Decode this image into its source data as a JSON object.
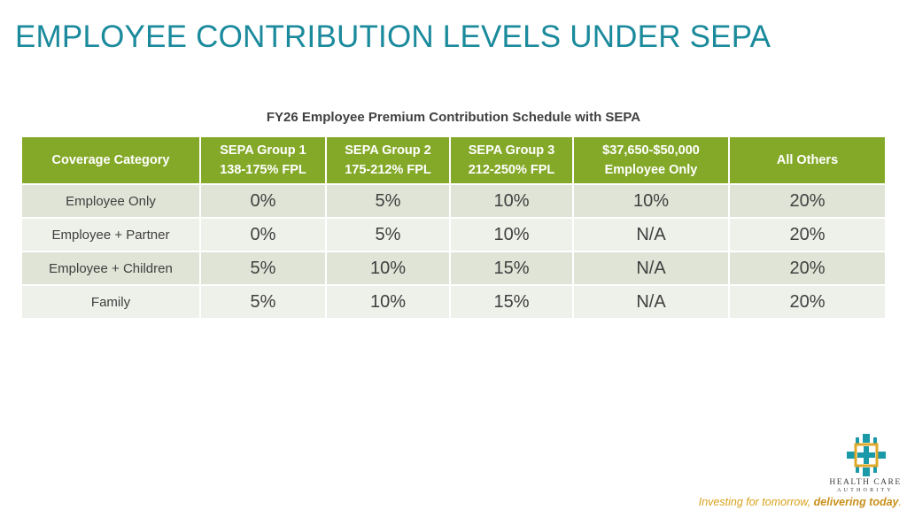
{
  "title": "EMPLOYEE CONTRIBUTION LEVELS UNDER SEPA",
  "table_caption": "FY26 Employee Premium Contribution Schedule with SEPA",
  "table": {
    "headers": [
      {
        "line1": "Coverage Category",
        "line2": ""
      },
      {
        "line1": "SEPA Group 1",
        "line2": "138-175% FPL"
      },
      {
        "line1": "SEPA Group 2",
        "line2": "175-212% FPL"
      },
      {
        "line1": "SEPA Group 3",
        "line2": "212-250% FPL"
      },
      {
        "line1": "$37,650-$50,000",
        "line2": "Employee Only"
      },
      {
        "line1": "All Others",
        "line2": ""
      }
    ],
    "rows": [
      {
        "category": "Employee Only",
        "values": [
          "0%",
          "5%",
          "10%",
          "10%",
          "20%"
        ]
      },
      {
        "category": "Employee + Partner",
        "values": [
          "0%",
          "5%",
          "10%",
          "N/A",
          "20%"
        ]
      },
      {
        "category": "Employee + Children",
        "values": [
          "5%",
          "10%",
          "15%",
          "N/A",
          "20%"
        ]
      },
      {
        "category": "Family",
        "values": [
          "5%",
          "10%",
          "15%",
          "N/A",
          "20%"
        ]
      }
    ]
  },
  "logo": {
    "name": "HEALTH CARE",
    "sub": "AUTHORITY",
    "icon": "zia-sun-cross-icon"
  },
  "tagline": {
    "part1": "Investing for tomorrow, ",
    "part2": "delivering today",
    "part3": "."
  },
  "colors": {
    "title": "#1a8a9c",
    "header_bg": "#84a928",
    "row_odd": "#dfe4d6",
    "row_even": "#eef0ea",
    "tagline": "#d9a21b",
    "logo_teal": "#1a9aa8",
    "logo_gold": "#e0a82a"
  }
}
